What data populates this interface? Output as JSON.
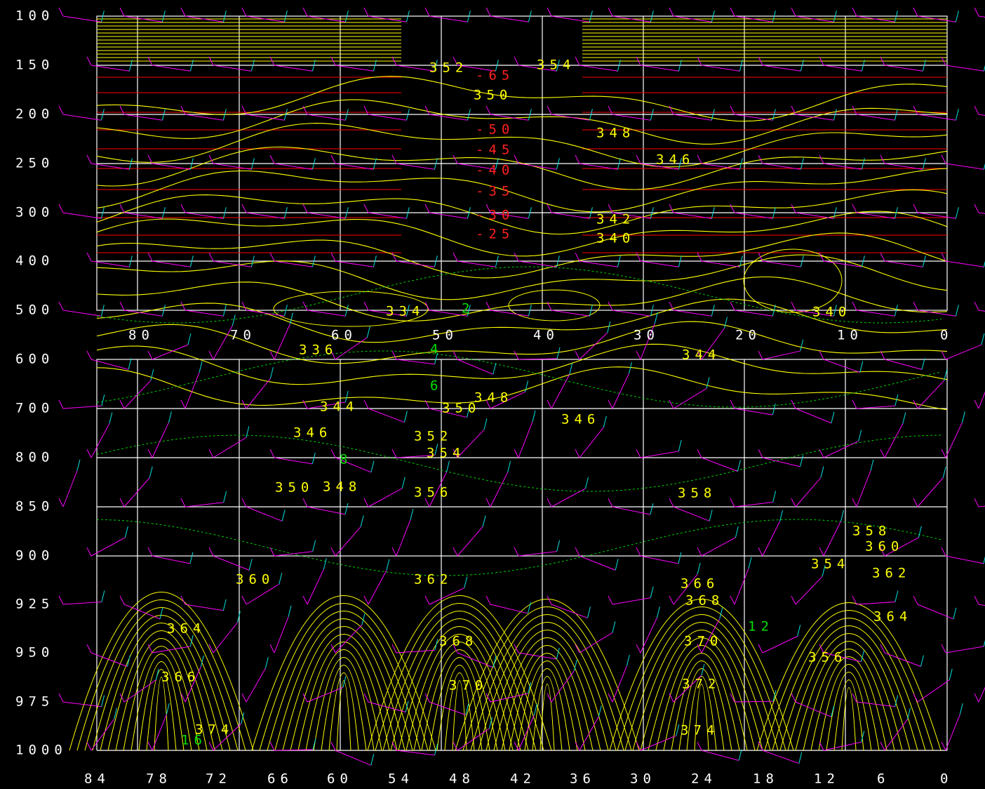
{
  "y_axis": {
    "labels": [
      "100",
      "150",
      "200",
      "250",
      "300",
      "400",
      "500",
      "600",
      "700",
      "800",
      "850",
      "900",
      "925",
      "950",
      "975",
      "1000"
    ]
  },
  "x_axis_top": {
    "labels": [
      "80",
      "70",
      "60",
      "50",
      "40",
      "30",
      "20",
      "10",
      "0"
    ]
  },
  "x_axis_bottom": {
    "labels": [
      "84",
      "78",
      "72",
      "66",
      "60",
      "54",
      "48",
      "42",
      "36",
      "30",
      "24",
      "18",
      "12",
      "6",
      "0"
    ]
  },
  "theta_labels": [
    "348",
    "346",
    "342",
    "340",
    "350",
    "352",
    "354",
    "344",
    "334",
    "336",
    "344",
    "350",
    "348",
    "346",
    "340",
    "352",
    "354",
    "346",
    "358",
    "356",
    "350",
    "348",
    "360",
    "362",
    "366",
    "368",
    "370",
    "372",
    "374",
    "368",
    "370",
    "364",
    "366",
    "374",
    "358",
    "360",
    "362",
    "356",
    "354",
    "364"
  ],
  "temperature_labels": [
    "-65",
    "-50",
    "-45",
    "-40",
    "-35",
    "-30",
    "-25"
  ],
  "humidity_labels": [
    "2",
    "4",
    "6",
    "8",
    "12",
    "16"
  ]
}
